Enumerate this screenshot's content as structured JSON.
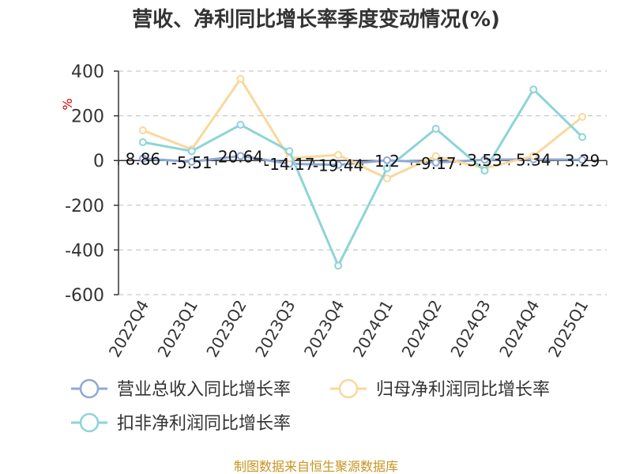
{
  "chart_data": {
    "type": "line",
    "title": "营收、净利同比增长率季度变动情况(%)",
    "ylabel": "%",
    "ylim": [
      -600,
      400
    ],
    "yticks": [
      400,
      200,
      0,
      -200,
      -400,
      -600
    ],
    "categories": [
      "2022Q4",
      "2023Q1",
      "2023Q2",
      "2023Q3",
      "2023Q4",
      "2024Q1",
      "2024Q2",
      "2024Q3",
      "2024Q4",
      "2025Q1"
    ],
    "series": [
      {
        "name": "营业总收入同比增长率",
        "color": "#8fa8d6",
        "values": [
          8.86,
          -5.51,
          20.64,
          -14.17,
          -19.44,
          1.2,
          -9.17,
          3.53,
          5.34,
          3.29
        ],
        "labels": [
          "8.86",
          "-5.51",
          "20.64",
          "-14.17",
          "-19.44",
          "1.2",
          "-9.17",
          "3.53",
          "5.34",
          "3.29"
        ]
      },
      {
        "name": "归母净利润同比增长率",
        "color": "#f9d89c",
        "values": [
          135,
          50,
          365,
          10,
          25,
          -80,
          20,
          -35,
          20,
          195
        ]
      },
      {
        "name": "扣非净利润同比增长率",
        "color": "#8dd4d8",
        "values": [
          82,
          42,
          160,
          42,
          -470,
          -35,
          142,
          -45,
          318,
          105
        ]
      }
    ],
    "grid": true,
    "legend_position": "bottom"
  },
  "source": "制图数据来自恒生聚源数据库"
}
